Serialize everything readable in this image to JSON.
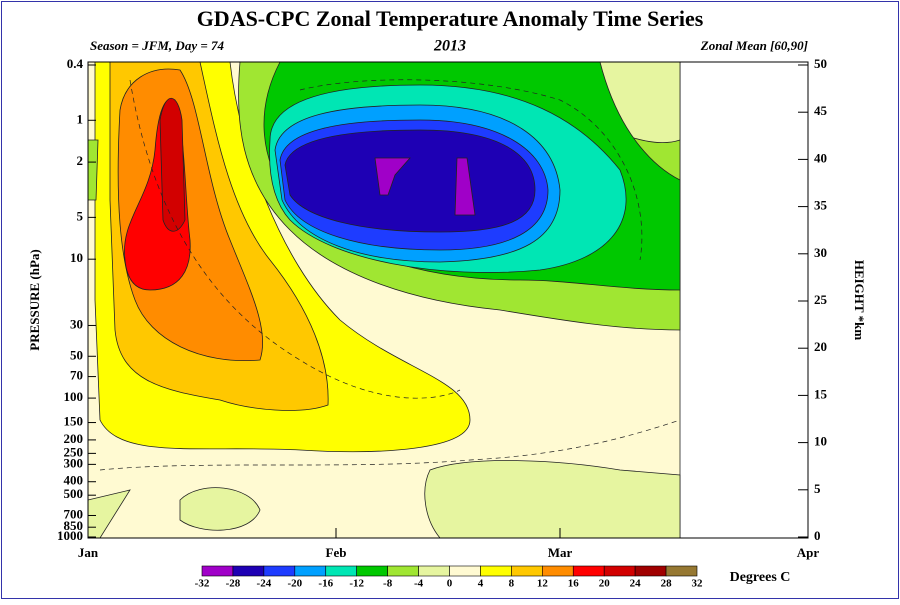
{
  "chart_data": {
    "type": "contour",
    "title": "GDAS-CPC Zonal Temperature Anomaly Time Series",
    "subtitle_left": "Season = JFM, Day =  74",
    "subtitle_center": "2013",
    "subtitle_right": "Zonal Mean [60,90]",
    "y_label": "PRESSURE (hPa)",
    "y2_label": "HEIGHT *km",
    "xlim": [
      1,
      91
    ],
    "xticks": [
      {
        "value": 1,
        "label": "Jan"
      },
      {
        "value": 32,
        "label": "Feb"
      },
      {
        "value": 60,
        "label": "Mar"
      },
      {
        "value": 91,
        "label": "Apr"
      }
    ],
    "ylim": [
      0.4,
      1000
    ],
    "y_log": true,
    "yticks": [
      0.4,
      1,
      2,
      5,
      10,
      30,
      50,
      70,
      100,
      150,
      200,
      250,
      300,
      400,
      500,
      700,
      850,
      1000
    ],
    "y2lim": [
      0,
      50
    ],
    "y2ticks": [
      0,
      5,
      10,
      15,
      20,
      25,
      30,
      35,
      40,
      45,
      50
    ],
    "colorbar": {
      "levels": [
        -32,
        -28,
        -24,
        -20,
        -16,
        -12,
        -8,
        -4,
        0,
        4,
        8,
        12,
        16,
        20,
        24,
        28,
        32
      ],
      "colors": [
        "#a000c8",
        "#1e00b4",
        "#1e3cff",
        "#00a0ff",
        "#00e6b4",
        "#00c800",
        "#a0e632",
        "#e6f5a0",
        "#fffad2",
        "#ffff00",
        "#ffc800",
        "#ff8c00",
        "#ff0000",
        "#d20000",
        "#a00000",
        "#967832"
      ],
      "label": "Degrees C"
    }
  }
}
